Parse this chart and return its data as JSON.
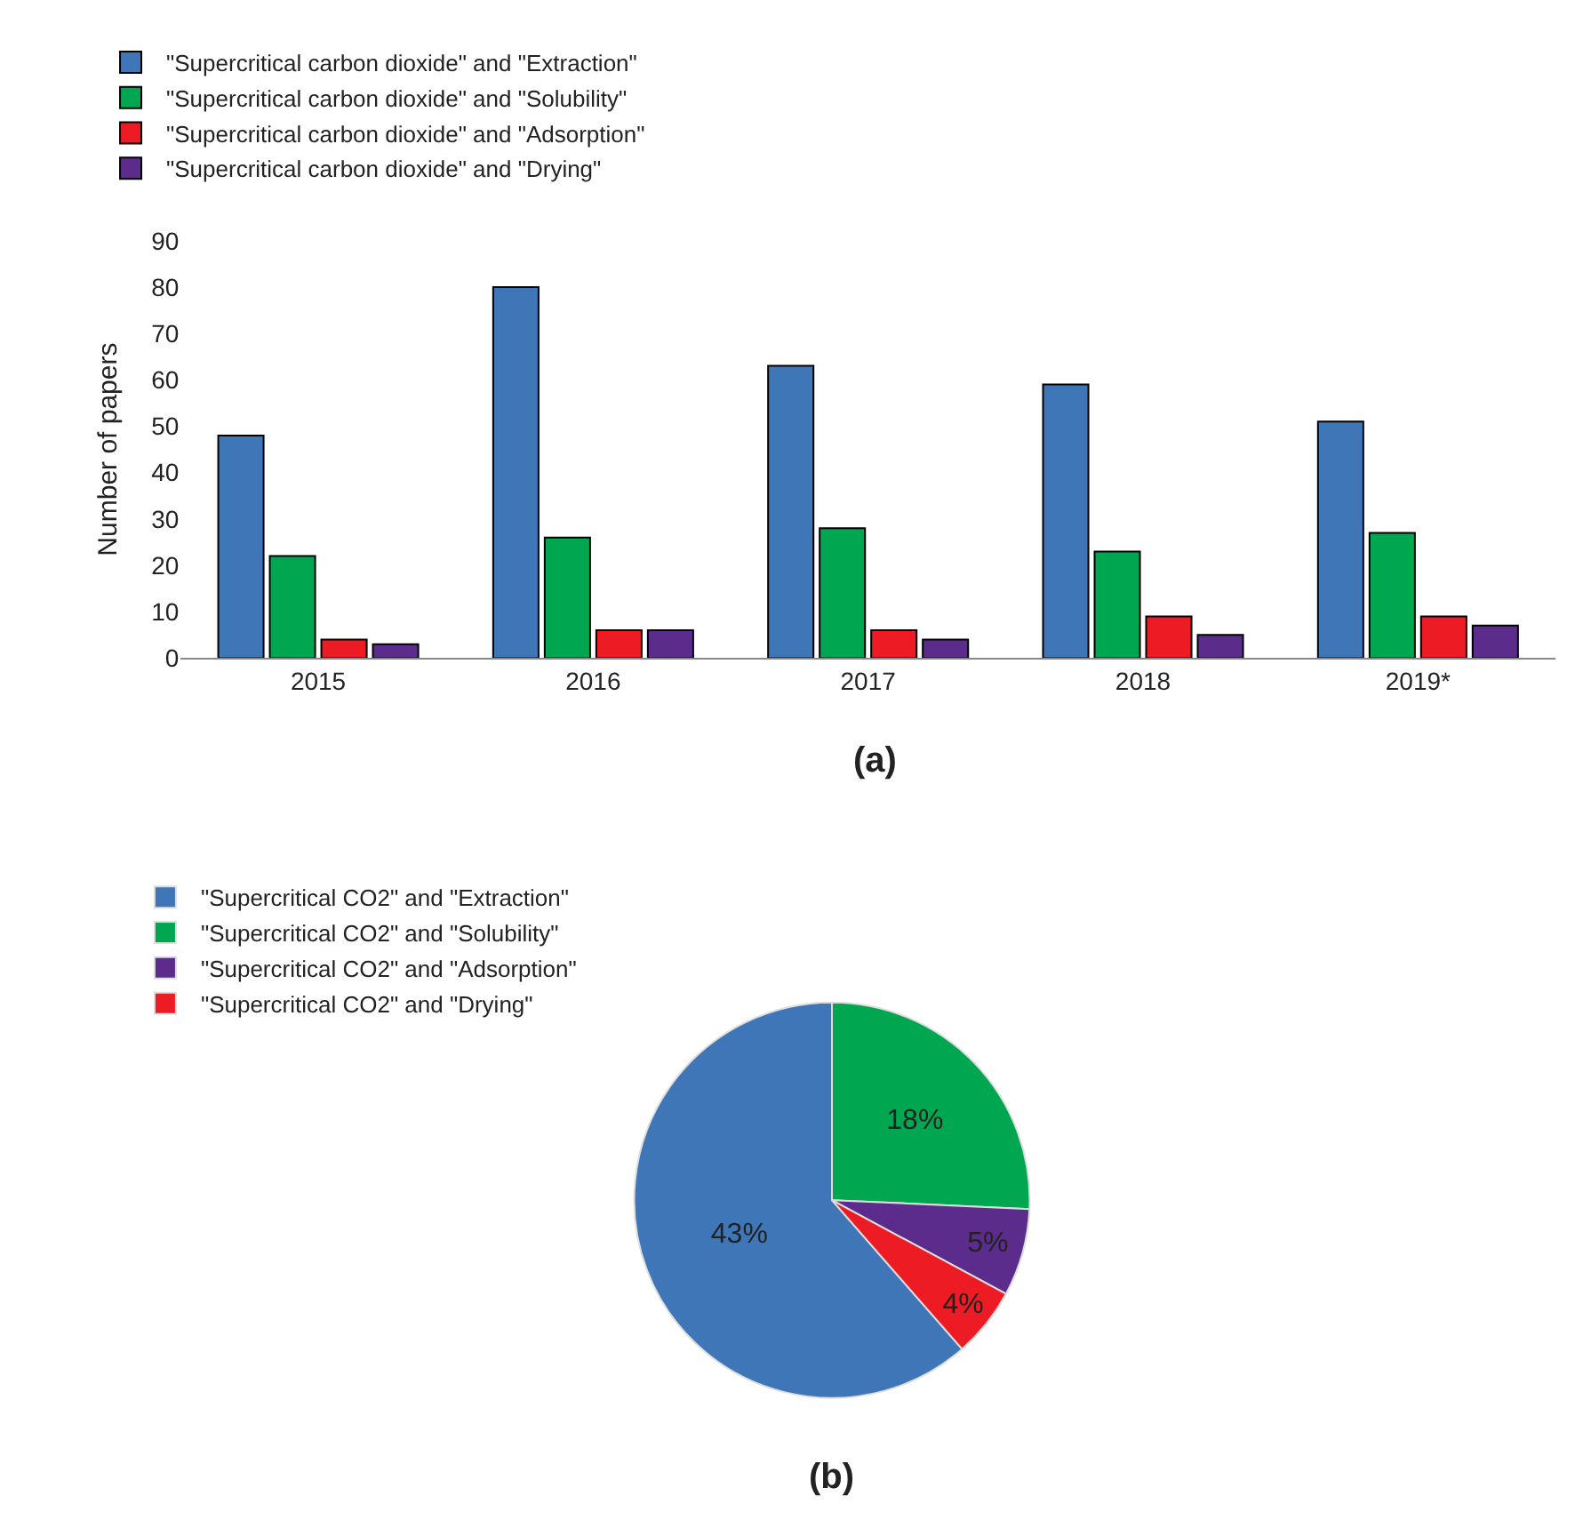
{
  "chart_data": [
    {
      "type": "bar",
      "title": "(a)",
      "ylabel": "Number of papers",
      "categories": [
        "2015",
        "2016",
        "2017",
        "2018",
        "2019*"
      ],
      "series": [
        {
          "name": "\"Supercritical carbon dioxide\" and \"Extraction\"",
          "color": "#3f76b8",
          "values": [
            48,
            80,
            63,
            59,
            51
          ]
        },
        {
          "name": "\"Supercritical carbon dioxide\" and \"Solubility\"",
          "color": "#00a650",
          "values": [
            22,
            26,
            28,
            23,
            27
          ]
        },
        {
          "name": "\"Supercritical carbon dioxide\" and \"Adsorption\"",
          "color": "#ed1c24",
          "values": [
            4,
            6,
            6,
            9,
            9
          ]
        },
        {
          "name": "\"Supercritical carbon dioxide\" and \"Drying\"",
          "color": "#5b2c8c",
          "values": [
            3,
            6,
            4,
            5,
            7
          ]
        }
      ],
      "ylim": [
        0,
        90
      ],
      "yticks": [
        0,
        10,
        20,
        30,
        40,
        50,
        60,
        70,
        80,
        90
      ],
      "legend": "top"
    },
    {
      "type": "pie",
      "title": "(b)",
      "categories": [
        "\"Supercritical CO2\" and \"Extraction\"",
        "\"Supercritical CO2\" and \"Solubility\"",
        "\"Supercritical CO2\" and \"Adsorption\"",
        "\"Supercritical CO2\" and \"Drying\""
      ],
      "values": [
        43,
        18,
        5,
        4
      ],
      "value_labels": [
        "43%",
        "18%",
        "5%",
        "4%"
      ],
      "colors": [
        "#3f76b8",
        "#00a650",
        "#5b2c8c",
        "#ed1c24"
      ],
      "legend": "top"
    }
  ]
}
